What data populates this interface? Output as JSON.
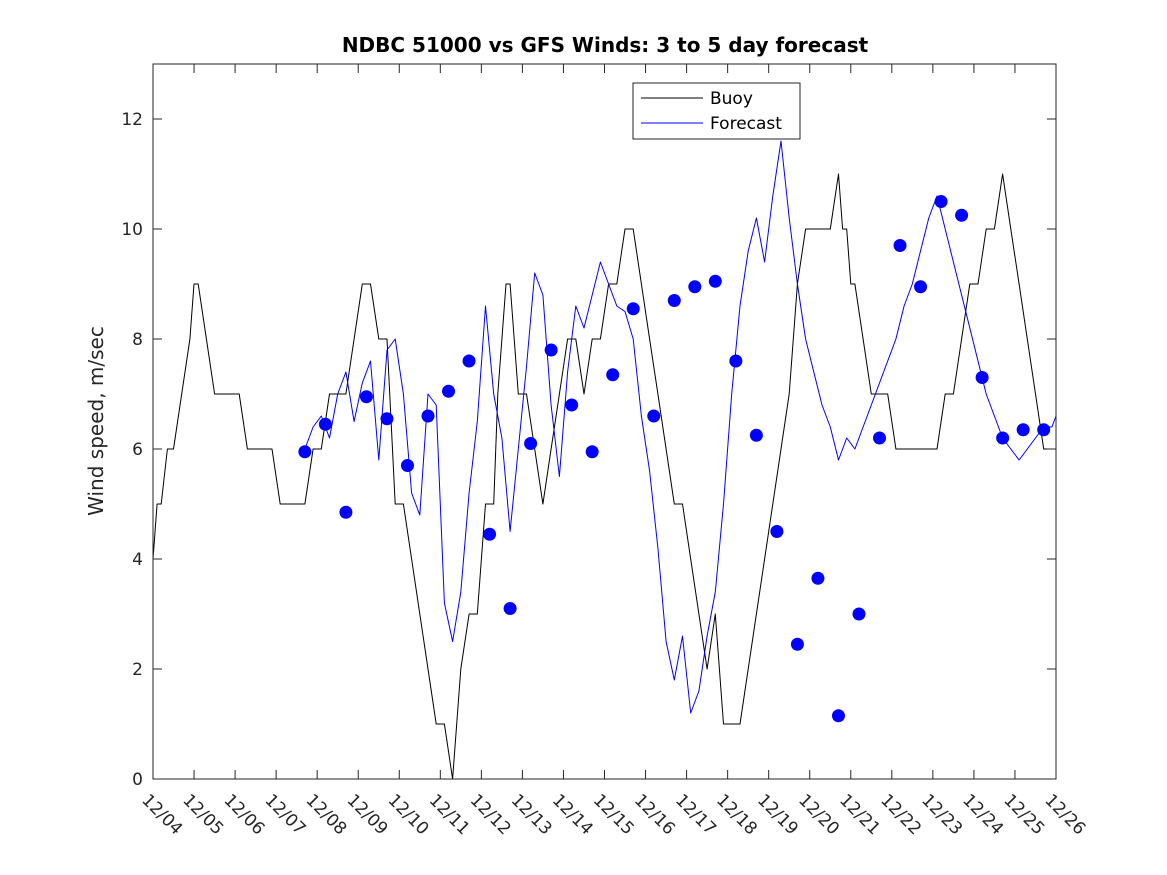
{
  "chart_data": {
    "type": "line",
    "title": "NDBC 51000 vs GFS Winds: 3 to 5 day forecast",
    "xlabel": "",
    "ylabel": "Wind speed, m/sec",
    "xlim": [
      "12/04",
      "12/26"
    ],
    "ylim": [
      0,
      13
    ],
    "yticks": [
      0,
      2,
      4,
      6,
      8,
      10,
      12
    ],
    "xtick_labels": [
      "12/04",
      "12/05",
      "12/06",
      "12/07",
      "12/08",
      "12/09",
      "12/10",
      "12/11",
      "12/12",
      "12/13",
      "12/14",
      "12/15",
      "12/16",
      "12/17",
      "12/18",
      "12/19",
      "12/20",
      "12/21",
      "12/22",
      "12/23",
      "12/24",
      "12/25",
      "12/26"
    ],
    "grid": false,
    "legend": {
      "placement": "top-center",
      "entries": [
        "Buoy",
        "Forecast"
      ]
    },
    "colors": {
      "buoy": "#000000",
      "forecast": "#0000ff",
      "markers": "#0000ff"
    },
    "series": [
      {
        "name": "Buoy",
        "x": [
          0,
          0.1,
          0.2,
          0.35,
          0.5,
          0.7,
          0.9,
          1.0,
          1.1,
          1.3,
          1.5,
          1.7,
          1.9,
          2.1,
          2.3,
          2.5,
          2.7,
          2.9,
          3.1,
          3.3,
          3.5,
          3.7,
          3.9,
          4.1,
          4.3,
          4.5,
          4.7,
          4.9,
          5.1,
          5.3,
          5.5,
          5.7,
          5.9,
          6.1,
          6.3,
          6.5,
          6.7,
          6.9,
          7.1,
          7.3,
          7.5,
          7.7,
          7.9,
          8.1,
          8.3,
          8.4,
          8.5,
          8.6,
          8.7,
          8.8,
          8.9,
          9.0,
          9.1,
          9.3,
          9.5,
          9.7,
          9.9,
          10.1,
          10.3,
          10.5,
          10.7,
          10.9,
          11.1,
          11.3,
          11.5,
          11.7,
          11.9,
          12.1,
          12.3,
          12.5,
          12.7,
          12.9,
          13.1,
          13.3,
          13.5,
          13.7,
          13.9,
          14.1,
          14.3,
          14.5,
          14.7,
          14.9,
          15.1,
          15.3,
          15.5,
          15.7,
          15.9,
          16.1,
          16.3,
          16.5,
          16.7,
          16.8,
          16.9,
          17.0,
          17.1,
          17.3,
          17.5,
          17.7,
          17.9,
          18.1,
          18.3,
          18.5,
          18.7,
          18.9,
          19.1,
          19.3,
          19.5,
          19.7,
          19.9,
          20.1,
          20.3,
          20.5,
          20.7,
          20.9,
          21.1,
          21.3,
          21.5,
          21.7,
          21.9,
          22.0
        ],
        "values": [
          4,
          5,
          5,
          6,
          6,
          7,
          8,
          9,
          9,
          8,
          7,
          7,
          7,
          7,
          6,
          6,
          6,
          6,
          5,
          5,
          5,
          5,
          6,
          6,
          7,
          7,
          7,
          8,
          9,
          9,
          8,
          8,
          5,
          5,
          4,
          3,
          2,
          1,
          1,
          0,
          2,
          3,
          3,
          5,
          5,
          7,
          8,
          9,
          9,
          8,
          7,
          7,
          7,
          6,
          5,
          6,
          7,
          8,
          8,
          7,
          8,
          8,
          9,
          9,
          10,
          10,
          9,
          8,
          7,
          6,
          5,
          5,
          4,
          3,
          2,
          3,
          1,
          1,
          1,
          2,
          3,
          4,
          5,
          6,
          7,
          9,
          10,
          10,
          10,
          10,
          11,
          10,
          10,
          9,
          9,
          8,
          7,
          7,
          7,
          6,
          6,
          6,
          6,
          6,
          6,
          7,
          7,
          8,
          9,
          9,
          10,
          10,
          11,
          10,
          9,
          8,
          7,
          6,
          6,
          6
        ]
      },
      {
        "name": "Forecast",
        "x": [
          3.7,
          3.9,
          4.1,
          4.3,
          4.5,
          4.7,
          4.9,
          5.1,
          5.3,
          5.5,
          5.7,
          5.9,
          6.1,
          6.3,
          6.5,
          6.7,
          6.9,
          7.1,
          7.3,
          7.5,
          7.7,
          7.9,
          8.1,
          8.3,
          8.5,
          8.7,
          8.9,
          9.1,
          9.3,
          9.5,
          9.7,
          9.9,
          10.1,
          10.3,
          10.5,
          10.7,
          10.9,
          11.1,
          11.3,
          11.5,
          11.7,
          11.9,
          12.1,
          12.3,
          12.5,
          12.7,
          12.9,
          13.1,
          13.3,
          13.5,
          13.7,
          13.9,
          14.1,
          14.3,
          14.5,
          14.7,
          14.9,
          15.1,
          15.3,
          15.5,
          15.7,
          15.9,
          16.1,
          16.3,
          16.5,
          16.7,
          16.9,
          17.1,
          17.3,
          17.5,
          17.7,
          17.9,
          18.1,
          18.3,
          18.5,
          18.7,
          18.9,
          19.1,
          19.3,
          19.5,
          19.7,
          19.9,
          20.1,
          20.3,
          20.5,
          20.7,
          20.9,
          21.1,
          21.3,
          21.5,
          21.7,
          21.9,
          22.0
        ],
        "values": [
          6.0,
          6.4,
          6.6,
          6.2,
          7.0,
          7.4,
          6.5,
          7.2,
          7.6,
          5.8,
          7.8,
          8.0,
          7.0,
          5.2,
          4.8,
          7.0,
          6.8,
          3.2,
          2.5,
          3.4,
          5.2,
          6.5,
          8.6,
          7.0,
          6.2,
          4.5,
          6.0,
          7.5,
          9.2,
          8.8,
          6.8,
          5.5,
          7.4,
          8.6,
          8.2,
          8.8,
          9.4,
          9.0,
          8.6,
          8.5,
          8.0,
          6.6,
          5.6,
          4.2,
          2.5,
          1.8,
          2.6,
          1.2,
          1.6,
          2.6,
          3.4,
          5.0,
          7.0,
          8.6,
          9.6,
          10.2,
          9.4,
          10.6,
          11.6,
          10.2,
          9.0,
          8.0,
          7.4,
          6.8,
          6.4,
          5.8,
          6.2,
          6.0,
          6.4,
          6.8,
          7.2,
          7.6,
          8.0,
          8.6,
          9.0,
          9.6,
          10.2,
          10.6,
          10.0,
          9.4,
          8.8,
          8.2,
          7.6,
          7.0,
          6.6,
          6.2,
          6.0,
          5.8,
          6.0,
          6.2,
          6.4,
          6.4,
          6.6
        ]
      }
    ],
    "markers": {
      "x": [
        3.7,
        4.2,
        4.7,
        5.2,
        5.7,
        6.2,
        6.7,
        7.2,
        7.7,
        8.2,
        8.7,
        9.2,
        9.7,
        10.2,
        10.7,
        11.2,
        11.7,
        12.2,
        12.7,
        13.2,
        13.7,
        14.2,
        14.7,
        15.2,
        15.7,
        16.2,
        16.7,
        17.2,
        17.7,
        18.2,
        18.7,
        19.2,
        19.7,
        20.2,
        20.7,
        21.2,
        21.7
      ],
      "values": [
        5.95,
        6.45,
        4.85,
        6.95,
        6.55,
        5.7,
        6.6,
        7.05,
        7.6,
        4.45,
        3.1,
        6.1,
        7.8,
        6.8,
        5.95,
        7.35,
        8.55,
        6.6,
        8.7,
        8.95,
        9.05,
        7.6,
        6.25,
        4.5,
        2.45,
        3.65,
        1.15,
        3.0,
        6.2,
        9.7,
        8.95,
        10.5,
        10.25,
        7.3,
        6.2,
        6.35,
        6.35
      ]
    }
  }
}
